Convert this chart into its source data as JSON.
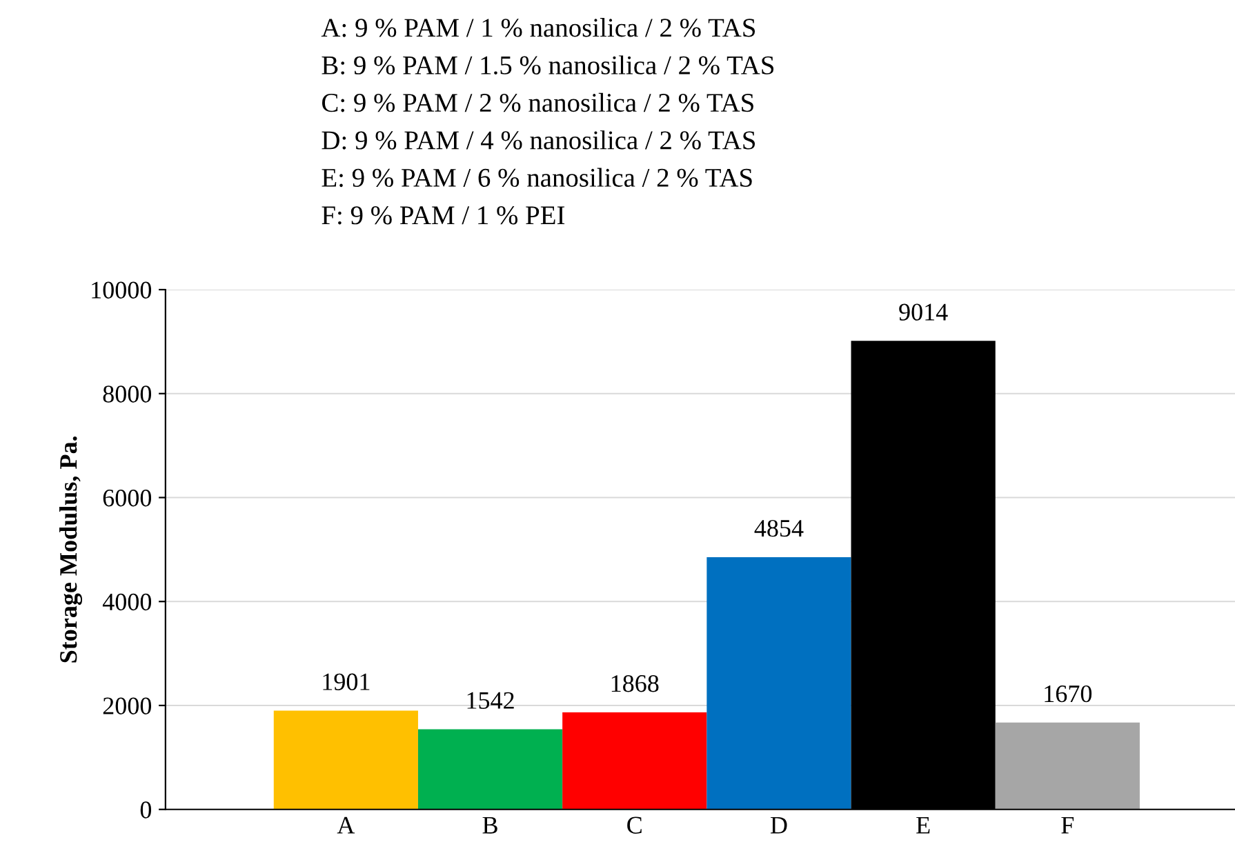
{
  "chart_data": {
    "type": "bar",
    "annotations": [
      "A: 9 % PAM / 1 % nanosilica / 2 % TAS",
      "B: 9 % PAM / 1.5 % nanosilica / 2 % TAS",
      "C: 9 % PAM / 2 % nanosilica / 2 % TAS",
      "D: 9 % PAM / 4 % nanosilica / 2 % TAS",
      "E: 9 % PAM / 6 % nanosilica / 2 % TAS",
      "F: 9 % PAM / 1 % PEI"
    ],
    "ylabel": "Storage Modulus, Pa.",
    "categories": [
      "A",
      "B",
      "C",
      "D",
      "E",
      "F"
    ],
    "values": [
      1901,
      1542,
      1868,
      4854,
      9014,
      1670
    ],
    "colors": [
      "#ffc000",
      "#00b050",
      "#ff0000",
      "#0070c0",
      "#000000",
      "#a6a6a6"
    ],
    "ylim": [
      0,
      10000
    ],
    "yticks": [
      0,
      2000,
      4000,
      6000,
      8000,
      10000
    ],
    "grid": "y",
    "data_labels": true
  }
}
